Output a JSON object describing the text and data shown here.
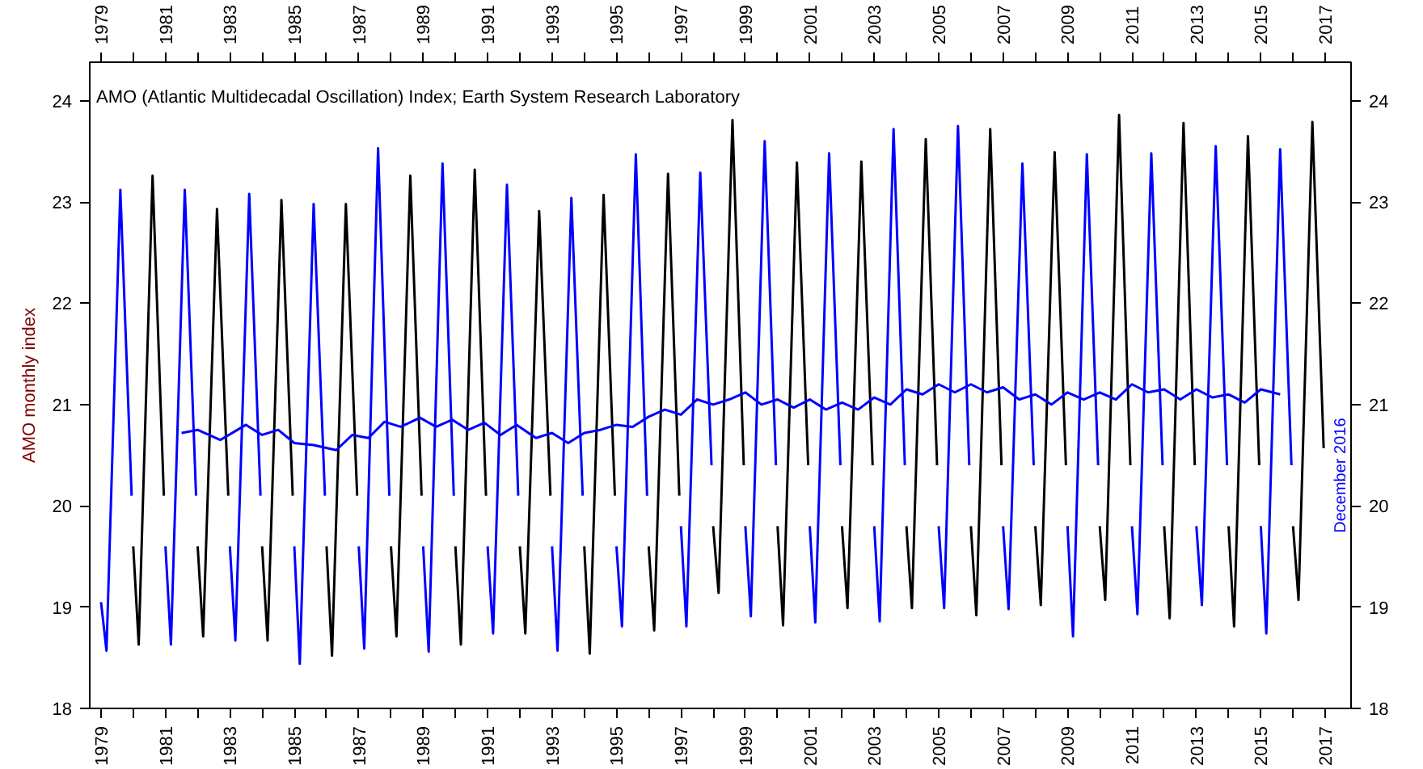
{
  "chart_data": {
    "type": "line",
    "title": "AMO (Atlantic Multidecadal Oscillation) Index; Earth System Research Laboratory",
    "ylabel": "AMO monthly index",
    "xlim": [
      1978.65,
      2017.8
    ],
    "ylim": [
      18,
      24.38
    ],
    "x2lim": [
      1978.65,
      2017.8
    ],
    "y2lim": [
      18,
      24.38
    ],
    "xticks": [
      1979,
      {
        "value": 1980,
        "label": null
      },
      1981,
      {
        "value": 1982,
        "label": null
      },
      1983,
      {
        "value": 1984,
        "label": null
      },
      1985,
      {
        "value": 1986,
        "label": null
      },
      1987,
      {
        "value": 1988,
        "label": null
      },
      1989,
      {
        "value": 1990,
        "label": null
      },
      1991,
      {
        "value": 1992,
        "label": null
      },
      1993,
      {
        "value": 1994,
        "label": null
      },
      1995,
      {
        "value": 1996,
        "label": null
      },
      1997,
      {
        "value": 1998,
        "label": null
      },
      1999,
      {
        "value": 2000,
        "label": null
      },
      2001,
      {
        "value": 2002,
        "label": null
      },
      2003,
      {
        "value": 2004,
        "label": null
      },
      2005,
      {
        "value": 2006,
        "label": null
      },
      2007,
      {
        "value": 2008,
        "label": null
      },
      2009,
      {
        "value": 2010,
        "label": null
      },
      2011,
      {
        "value": 2012,
        "label": null
      },
      2013,
      {
        "value": 2014,
        "label": null
      },
      2015,
      {
        "value": 2016,
        "label": null
      },
      2017
    ],
    "x2ticks": [
      1979,
      {
        "value": 1980,
        "label": null
      },
      1981,
      {
        "value": 1982,
        "label": null
      },
      1983,
      {
        "value": 1984,
        "label": null
      },
      1985,
      {
        "value": 1986,
        "label": null
      },
      1987,
      {
        "value": 1988,
        "label": null
      },
      1989,
      {
        "value": 1990,
        "label": null
      },
      1991,
      {
        "value": 1992,
        "label": null
      },
      1993,
      {
        "value": 1994,
        "label": null
      },
      1995,
      {
        "value": 1996,
        "label": null
      },
      1997,
      {
        "value": 1998,
        "label": null
      },
      1999,
      {
        "value": 2000,
        "label": null
      },
      2001,
      {
        "value": 2002,
        "label": null
      },
      2003,
      {
        "value": 2004,
        "label": null
      },
      2005,
      {
        "value": 2006,
        "label": null
      },
      2007,
      {
        "value": 2008,
        "label": null
      },
      2009,
      {
        "value": 2010,
        "label": null
      },
      2011,
      {
        "value": 2012,
        "label": null
      },
      2013,
      {
        "value": 2014,
        "label": null
      },
      2015,
      {
        "value": 2016,
        "label": null
      },
      2017
    ],
    "yticks": [
      18,
      19,
      20,
      21,
      22,
      23,
      24
    ],
    "y2ticks": [
      18,
      19,
      20,
      21,
      22,
      23,
      24
    ],
    "grid": false,
    "marker": "none",
    "line_style": "solid",
    "annotations": [
      "December 2016"
    ],
    "series": [
      {
        "color": "#000000",
        "x": [
          1980,
          1980.17,
          1980.6,
          1980.95,
          1980.97,
          1982,
          1982.17,
          1982.6,
          1982.95,
          1982.97,
          1984,
          1984.17,
          1984.6,
          1984.95,
          1984.97,
          1986,
          1986.17,
          1986.6,
          1986.95,
          1986.97,
          1988,
          1988.17,
          1988.6,
          1988.95,
          1988.97,
          1990,
          1990.17,
          1990.6,
          1990.95,
          1990.97,
          1992,
          1992.17,
          1992.6,
          1992.95,
          1992.97,
          1994,
          1994.17,
          1994.6,
          1994.95,
          1994.97,
          1996,
          1996.17,
          1996.6,
          1996.95,
          1996.97,
          1998,
          1998.17,
          1998.6,
          1998.95,
          1998.97,
          2000,
          2000.17,
          2000.6,
          2000.95,
          2000.97,
          2002,
          2002.17,
          2002.6,
          2002.95,
          2002.97,
          2004,
          2004.17,
          2004.6,
          2004.95,
          2004.97,
          2006,
          2006.17,
          2006.6,
          2006.95,
          2006.97,
          2008,
          2008.17,
          2008.6,
          2008.95,
          2008.97,
          2010,
          2010.17,
          2010.6,
          2010.95,
          2010.97,
          2012,
          2012.17,
          2012.6,
          2012.95,
          2012.97,
          2014,
          2014.17,
          2014.6,
          2014.95,
          2014.97,
          2016,
          2016.17,
          2016.6,
          2016.95
        ],
        "values": [
          19.6,
          18.63,
          23.26,
          20.1,
          null,
          19.6,
          18.71,
          22.93,
          20.1,
          null,
          19.6,
          18.67,
          23.02,
          20.1,
          null,
          19.6,
          18.52,
          22.98,
          20.1,
          null,
          19.6,
          18.71,
          23.26,
          20.1,
          null,
          19.6,
          18.63,
          23.32,
          20.1,
          null,
          19.6,
          18.74,
          22.91,
          20.1,
          null,
          19.6,
          18.54,
          23.07,
          20.1,
          null,
          19.6,
          18.77,
          23.28,
          20.1,
          null,
          19.8,
          19.14,
          23.81,
          20.4,
          null,
          19.8,
          18.82,
          23.39,
          20.4,
          null,
          19.8,
          18.99,
          23.4,
          20.4,
          null,
          19.8,
          18.99,
          23.62,
          20.4,
          null,
          19.8,
          18.92,
          23.72,
          20.4,
          null,
          19.8,
          19.02,
          23.49,
          20.4,
          null,
          19.8,
          19.07,
          23.86,
          20.4,
          null,
          19.8,
          18.89,
          23.78,
          20.4,
          null,
          19.8,
          18.81,
          23.65,
          20.4,
          null,
          19.8,
          19.07,
          23.79,
          20.57
        ]
      },
      {
        "color": "#0000ff",
        "x": [
          1979,
          1979.17,
          1979.6,
          1979.95,
          1979.97,
          1981,
          1981.17,
          1981.6,
          1981.95,
          1981.97,
          1983,
          1983.17,
          1983.6,
          1983.95,
          1983.97,
          1985,
          1985.17,
          1985.6,
          1985.95,
          1985.97,
          1987,
          1987.17,
          1987.6,
          1987.95,
          1987.97,
          1989,
          1989.17,
          1989.6,
          1989.95,
          1989.97,
          1991,
          1991.17,
          1991.6,
          1991.95,
          1991.97,
          1993,
          1993.17,
          1993.6,
          1993.95,
          1993.97,
          1995,
          1995.17,
          1995.6,
          1995.95,
          1995.97,
          1997,
          1997.17,
          1997.6,
          1997.95,
          1997.97,
          1999,
          1999.17,
          1999.6,
          1999.95,
          1999.97,
          2001,
          2001.17,
          2001.6,
          2001.95,
          2001.97,
          2003,
          2003.17,
          2003.6,
          2003.95,
          2003.97,
          2005,
          2005.17,
          2005.6,
          2005.95,
          2005.97,
          2007,
          2007.17,
          2007.6,
          2007.95,
          2007.97,
          2009,
          2009.17,
          2009.6,
          2009.95,
          2009.97,
          2011,
          2011.17,
          2011.6,
          2011.95,
          2011.97,
          2013,
          2013.17,
          2013.6,
          2013.95,
          2013.97,
          2015,
          2015.17,
          2015.6,
          2015.95
        ],
        "values": [
          19.05,
          18.57,
          23.12,
          20.1,
          null,
          19.6,
          18.63,
          23.12,
          20.1,
          null,
          19.6,
          18.67,
          23.08,
          20.1,
          null,
          19.6,
          18.44,
          22.98,
          20.1,
          null,
          19.6,
          18.59,
          23.53,
          20.1,
          null,
          19.6,
          18.56,
          23.38,
          20.1,
          null,
          19.6,
          18.74,
          23.17,
          20.1,
          null,
          19.6,
          18.57,
          23.04,
          20.1,
          null,
          19.6,
          18.81,
          23.47,
          20.1,
          null,
          19.8,
          18.81,
          23.29,
          20.4,
          null,
          19.8,
          18.91,
          23.6,
          20.4,
          null,
          19.8,
          18.85,
          23.48,
          20.4,
          null,
          19.8,
          18.86,
          23.72,
          20.4,
          null,
          19.8,
          18.99,
          23.75,
          20.4,
          null,
          19.8,
          18.98,
          23.38,
          20.4,
          null,
          19.8,
          18.71,
          23.47,
          20.4,
          null,
          19.8,
          18.93,
          23.48,
          20.4,
          null,
          19.8,
          19.02,
          23.55,
          20.4,
          null,
          19.8,
          18.74,
          23.52,
          20.4
        ]
      },
      {
        "color": "#0000ff",
        "x": [
          1981.5,
          1982,
          1982.7,
          1983.5,
          1984,
          1984.5,
          1985,
          1985.6,
          1986.3,
          1986.8,
          1987.3,
          1987.8,
          1988.3,
          1988.9,
          1989.4,
          1989.9,
          1990.4,
          1990.9,
          1991.4,
          1991.9,
          1992.5,
          1993,
          1993.5,
          1994,
          1994.5,
          1995,
          1995.5,
          1996,
          1996.5,
          1997,
          1997.5,
          1998,
          1998.5,
          1999,
          1999.5,
          2000,
          2000.5,
          2001,
          2001.5,
          2002,
          2002.5,
          2003,
          2003.5,
          2004,
          2004.5,
          2005,
          2005.5,
          2006,
          2006.5,
          2007,
          2007.5,
          2008,
          2008.5,
          2009,
          2009.5,
          2010,
          2010.5,
          2011,
          2011.5,
          2012,
          2012.5,
          2013,
          2013.5,
          2014,
          2014.5,
          2015,
          2015.6
        ],
        "values": [
          20.72,
          20.75,
          20.65,
          20.8,
          20.7,
          20.75,
          20.62,
          20.6,
          20.55,
          20.7,
          20.67,
          20.83,
          20.78,
          20.87,
          20.78,
          20.85,
          20.75,
          20.82,
          20.7,
          20.8,
          20.67,
          20.72,
          20.62,
          20.72,
          20.75,
          20.8,
          20.78,
          20.88,
          20.95,
          20.9,
          21.05,
          21.0,
          21.05,
          21.12,
          21.0,
          21.05,
          20.97,
          21.05,
          20.95,
          21.02,
          20.95,
          21.07,
          21.0,
          21.15,
          21.1,
          21.2,
          21.12,
          21.2,
          21.12,
          21.17,
          21.05,
          21.1,
          21.0,
          21.12,
          21.05,
          21.12,
          21.05,
          21.2,
          21.12,
          21.15,
          21.05,
          21.15,
          21.07,
          21.1,
          21.02,
          21.15,
          21.1
        ]
      }
    ]
  }
}
